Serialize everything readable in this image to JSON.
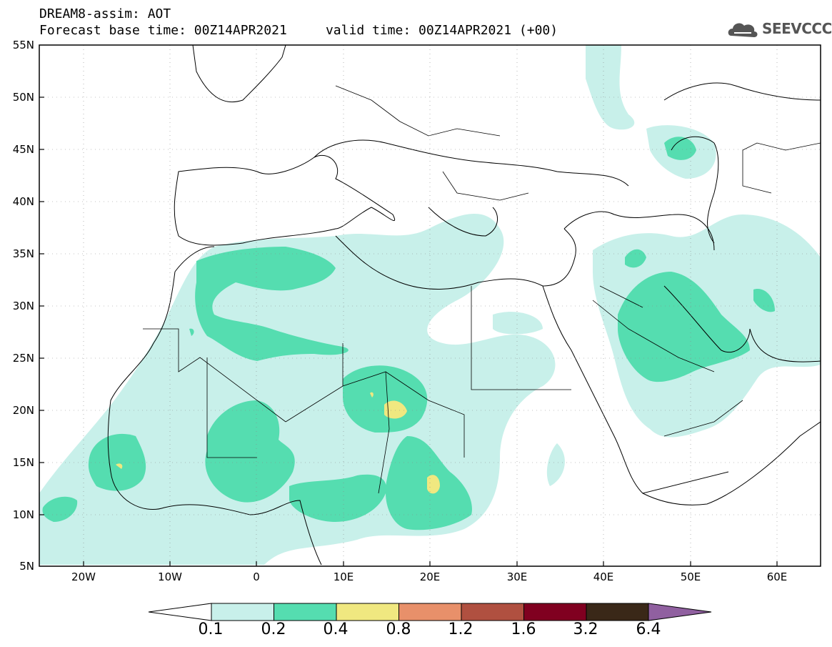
{
  "title": {
    "line1": "DREAM8-assim: AOT",
    "line2": "Forecast base time: 00Z14APR2021     valid time: 00Z14APR2021 (+00)"
  },
  "logo": {
    "text": "SEEVCCC",
    "icon": "cloud-logo-icon"
  },
  "axes": {
    "lat_labels": [
      "55N",
      "50N",
      "45N",
      "40N",
      "35N",
      "30N",
      "25N",
      "20N",
      "15N",
      "10N",
      "5N"
    ],
    "lon_labels": [
      "20W",
      "10W",
      "0",
      "10E",
      "20E",
      "30E",
      "40E",
      "50E",
      "60E"
    ]
  },
  "colorbar": {
    "colors": [
      "#c8f0ea",
      "#55ddb0",
      "#f0e880",
      "#e8906a",
      "#b05040",
      "#800020",
      "#3a2818",
      "#9060a0"
    ],
    "labels": [
      "0.1",
      "0.2",
      "0.4",
      "0.8",
      "1.2",
      "1.6",
      "3.2",
      "6.4"
    ]
  }
}
